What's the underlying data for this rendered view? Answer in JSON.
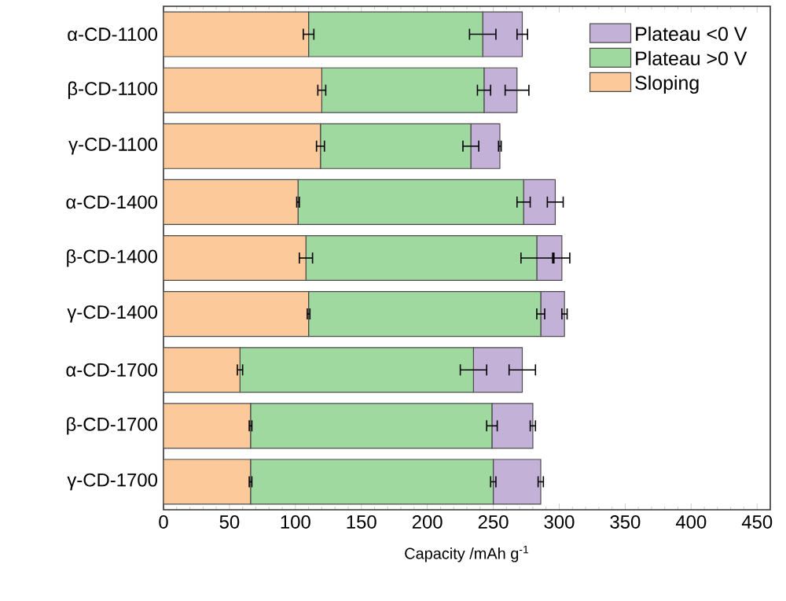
{
  "chart_data": {
    "type": "bar",
    "orientation": "horizontal",
    "stacked": true,
    "xlabel": "Capacity /mAh g$^{-1}$",
    "categories": [
      "α-CD-1100",
      "β-CD-1100",
      "γ-CD-1100",
      "α-CD-1400",
      "β-CD-1400",
      "γ-CD-1400",
      "α-CD-1700",
      "β-CD-1700",
      "γ-CD-1700"
    ],
    "series": [
      {
        "name": "Sloping",
        "color": "#fbc99a",
        "values": [
          110,
          120,
          119,
          102,
          108,
          110,
          58,
          66,
          66
        ],
        "errors": [
          4,
          3,
          3,
          1,
          5,
          1,
          2,
          1,
          1
        ]
      },
      {
        "name": "Plateau >0 V",
        "color": "#9fd9a0",
        "values": [
          132,
          123,
          114,
          171,
          175,
          176,
          177,
          183,
          184
        ],
        "errors": [
          10,
          5,
          6,
          5,
          12,
          3,
          10,
          4,
          2
        ]
      },
      {
        "name": "Plateau <0 V",
        "color": "#c3b1d8",
        "values": [
          30,
          25,
          22,
          24,
          19,
          18,
          37,
          31,
          36
        ],
        "errors": [
          4,
          9,
          1,
          6,
          6,
          2,
          10,
          2,
          2
        ]
      }
    ],
    "xlim": [
      0,
      460
    ],
    "xticks": [
      0,
      50,
      100,
      150,
      200,
      250,
      300,
      350,
      400,
      450
    ],
    "legend": "top right"
  }
}
